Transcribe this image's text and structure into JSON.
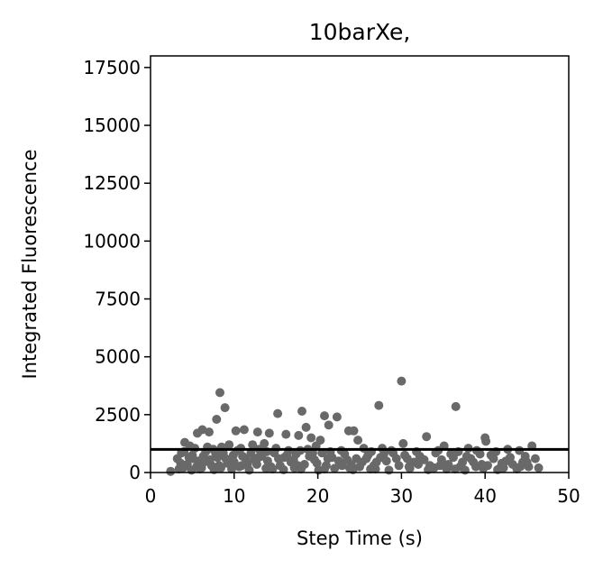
{
  "chart_data": {
    "type": "scatter",
    "title": "10barXe,",
    "xlabel": "Step Time (s)",
    "ylabel": "Integrated Fluorescence",
    "xlim": [
      0,
      50
    ],
    "ylim": [
      0,
      18000
    ],
    "xticks": [
      "0",
      "10",
      "20",
      "30",
      "40",
      "50"
    ],
    "yticks": [
      "0",
      "2500",
      "5000",
      "7500",
      "10000",
      "12500",
      "15000",
      "17500"
    ],
    "grid": false,
    "marker_color": "#696969",
    "reference_line": {
      "y": 1000,
      "color": "#000000"
    },
    "series": [
      {
        "points": [
          [
            8.3,
            3450
          ],
          [
            8.9,
            2800
          ],
          [
            7.9,
            2300
          ],
          [
            6.2,
            1850
          ],
          [
            5.6,
            1700
          ],
          [
            7.0,
            1750
          ],
          [
            10.2,
            1800
          ],
          [
            11.2,
            1850
          ],
          [
            12.8,
            1750
          ],
          [
            14.2,
            1700
          ],
          [
            15.2,
            2550
          ],
          [
            16.2,
            1650
          ],
          [
            17.7,
            1600
          ],
          [
            18.1,
            2650
          ],
          [
            18.6,
            1950
          ],
          [
            19.2,
            1500
          ],
          [
            20.3,
            1400
          ],
          [
            20.8,
            2450
          ],
          [
            21.3,
            2050
          ],
          [
            22.3,
            2400
          ],
          [
            23.7,
            1800
          ],
          [
            24.3,
            1800
          ],
          [
            24.8,
            1400
          ],
          [
            27.3,
            2900
          ],
          [
            30.0,
            3950
          ],
          [
            36.5,
            2850
          ],
          [
            33.0,
            1550
          ],
          [
            40.0,
            1500
          ],
          [
            40.1,
            1350
          ],
          [
            45.6,
            1150
          ],
          [
            4.1,
            1300
          ],
          [
            4.7,
            1150
          ],
          [
            9.4,
            1200
          ],
          [
            12.2,
            1200
          ],
          [
            13.6,
            1250
          ],
          [
            19.8,
            1150
          ],
          [
            25.5,
            1050
          ],
          [
            27.7,
            1050
          ],
          [
            30.2,
            1250
          ],
          [
            35.1,
            1150
          ],
          [
            38.0,
            1050
          ],
          [
            42.7,
            1000
          ],
          [
            44.1,
            950
          ],
          [
            3.2,
            600
          ],
          [
            3.7,
            850
          ],
          [
            4.4,
            350
          ],
          [
            5.0,
            750
          ],
          [
            5.8,
            500
          ],
          [
            6.6,
            900
          ],
          [
            7.3,
            300
          ],
          [
            8.0,
            650
          ],
          [
            8.7,
            850
          ],
          [
            9.2,
            400
          ],
          [
            9.9,
            750
          ],
          [
            10.6,
            250
          ],
          [
            11.4,
            600
          ],
          [
            12.0,
            850
          ],
          [
            12.7,
            350
          ],
          [
            13.3,
            700
          ],
          [
            14.0,
            500
          ],
          [
            14.8,
            850
          ],
          [
            15.5,
            300
          ],
          [
            16.0,
            650
          ],
          [
            16.8,
            450
          ],
          [
            17.4,
            800
          ],
          [
            18.4,
            350
          ],
          [
            19.0,
            700
          ],
          [
            19.6,
            550
          ],
          [
            20.5,
            850
          ],
          [
            21.0,
            300
          ],
          [
            21.7,
            650
          ],
          [
            22.5,
            500
          ],
          [
            23.2,
            800
          ],
          [
            24.0,
            350
          ],
          [
            24.6,
            600
          ],
          [
            25.3,
            450
          ],
          [
            26.0,
            750
          ],
          [
            26.7,
            300
          ],
          [
            27.5,
            650
          ],
          [
            28.2,
            500
          ],
          [
            29.0,
            850
          ],
          [
            29.7,
            300
          ],
          [
            30.7,
            600
          ],
          [
            31.5,
            450
          ],
          [
            32.2,
            700
          ],
          [
            33.4,
            300
          ],
          [
            34.1,
            850
          ],
          [
            34.8,
            550
          ],
          [
            35.6,
            350
          ],
          [
            36.2,
            650
          ],
          [
            37.0,
            250
          ],
          [
            37.8,
            700
          ],
          [
            38.6,
            450
          ],
          [
            39.4,
            800
          ],
          [
            40.3,
            300
          ],
          [
            41.0,
            600
          ],
          [
            41.8,
            200
          ],
          [
            42.5,
            500
          ],
          [
            43.3,
            350
          ],
          [
            44.5,
            450
          ],
          [
            45.2,
            250
          ],
          [
            46.4,
            200
          ],
          [
            2.4,
            50
          ],
          [
            3.4,
            150
          ],
          [
            4.9,
            100
          ],
          [
            6.1,
            200
          ],
          [
            7.6,
            120
          ],
          [
            9.7,
            150
          ],
          [
            11.8,
            100
          ],
          [
            13.8,
            180
          ],
          [
            15.9,
            120
          ],
          [
            18.0,
            150
          ],
          [
            20.1,
            100
          ],
          [
            22.0,
            180
          ],
          [
            24.2,
            120
          ],
          [
            26.3,
            150
          ],
          [
            28.5,
            100
          ],
          [
            31.0,
            180
          ],
          [
            33.2,
            120
          ],
          [
            35.4,
            150
          ],
          [
            37.6,
            100
          ],
          [
            39.8,
            180
          ],
          [
            41.5,
            120
          ],
          [
            43.8,
            150
          ],
          [
            4.0,
            900
          ],
          [
            5.3,
            1050
          ],
          [
            6.8,
            1100
          ],
          [
            7.5,
            1000
          ],
          [
            8.5,
            1100
          ],
          [
            10.8,
            1050
          ],
          [
            13.0,
            1000
          ],
          [
            15.0,
            1050
          ],
          [
            16.5,
            950
          ],
          [
            18.8,
            1000
          ],
          [
            22.8,
            950
          ],
          [
            26.4,
            900
          ],
          [
            28.8,
            950
          ],
          [
            31.8,
            900
          ],
          [
            34.4,
            950
          ],
          [
            36.8,
            900
          ],
          [
            39.0,
            950
          ],
          [
            41.3,
            900
          ],
          [
            5.1,
            600
          ],
          [
            6.4,
            450
          ],
          [
            7.8,
            800
          ],
          [
            9.5,
            550
          ],
          [
            10.4,
            950
          ],
          [
            11.0,
            700
          ],
          [
            12.4,
            550
          ],
          [
            13.9,
            900
          ],
          [
            15.3,
            600
          ],
          [
            17.1,
            550
          ],
          [
            17.9,
            950
          ],
          [
            19.4,
            850
          ],
          [
            21.5,
            900
          ],
          [
            23.5,
            550
          ],
          [
            25.8,
            600
          ],
          [
            27.9,
            800
          ],
          [
            30.4,
            750
          ],
          [
            32.7,
            550
          ],
          [
            35.9,
            800
          ],
          [
            38.3,
            600
          ],
          [
            40.7,
            750
          ],
          [
            43.0,
            650
          ],
          [
            44.8,
            700
          ],
          [
            46.0,
            600
          ],
          [
            3.6,
            400
          ],
          [
            4.6,
            650
          ],
          [
            5.5,
            250
          ],
          [
            6.3,
            700
          ],
          [
            7.1,
            550
          ],
          [
            8.2,
            300
          ],
          [
            9.0,
            600
          ],
          [
            10.0,
            450
          ],
          [
            11.6,
            350
          ],
          [
            12.9,
            650
          ],
          [
            14.4,
            250
          ],
          [
            16.3,
            750
          ],
          [
            17.6,
            300
          ],
          [
            19.9,
            400
          ],
          [
            21.2,
            600
          ],
          [
            22.9,
            300
          ],
          [
            25.0,
            250
          ],
          [
            27.0,
            450
          ],
          [
            29.4,
            600
          ],
          [
            32.0,
            350
          ],
          [
            34.6,
            300
          ],
          [
            37.3,
            450
          ],
          [
            39.6,
            350
          ],
          [
            42.0,
            400
          ],
          [
            45.0,
            450
          ],
          [
            3.9,
            200
          ],
          [
            5.9,
            150
          ],
          [
            8.4,
            200
          ],
          [
            10.9,
            300
          ],
          [
            14.6,
            150
          ],
          [
            17.2,
            200
          ],
          [
            20.8,
            150
          ],
          [
            23.8,
            200
          ],
          [
            26.9,
            150
          ],
          [
            30.9,
            250
          ],
          [
            33.9,
            200
          ],
          [
            36.4,
            150
          ],
          [
            38.9,
            250
          ],
          [
            42.2,
            200
          ],
          [
            44.2,
            250
          ]
        ]
      }
    ]
  }
}
